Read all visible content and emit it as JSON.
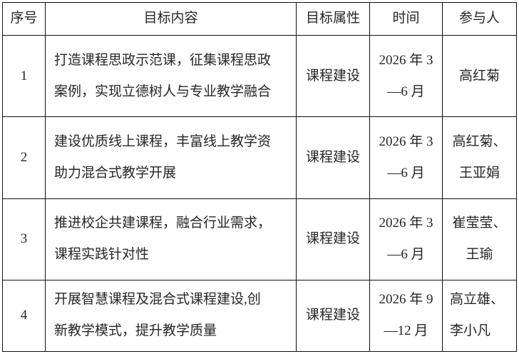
{
  "table": {
    "headers": {
      "no": "序号",
      "content": "目标内容",
      "attribute": "目标属性",
      "time": "时间",
      "participants": "参与人"
    },
    "rows": [
      {
        "no": "1",
        "content": "打造课程思政示范课，征集课程思政\n案例，实现立德树人与专业教学融合",
        "attribute": "课程建设",
        "time": "2026 年 3\n—6 月",
        "participants": "高红菊"
      },
      {
        "no": "2",
        "content": "建设优质线上课程，丰富线上教学资\n助力混合式教学开展",
        "attribute": "课程建设",
        "time": "2026 年 3\n—6 月",
        "participants": "高红菊、\n王亚娟"
      },
      {
        "no": "3",
        "content": "推进校企共建课程，融合行业需求，\n课程实践针对性",
        "attribute": "课程建设",
        "time": "2026 年 3\n—6 月",
        "participants": "崔莹莹、\n王瑜"
      },
      {
        "no": "4",
        "content": "开展智慧课程及混合式课程建设,创\n新教学模式，提升教学质量",
        "attribute": "课程建设",
        "time": "2026 年 9\n—12 月",
        "participants": "高立雄、\n李小凡"
      }
    ],
    "colors": {
      "border": "#111111",
      "text": "#262626",
      "background": "#ffffff"
    }
  }
}
